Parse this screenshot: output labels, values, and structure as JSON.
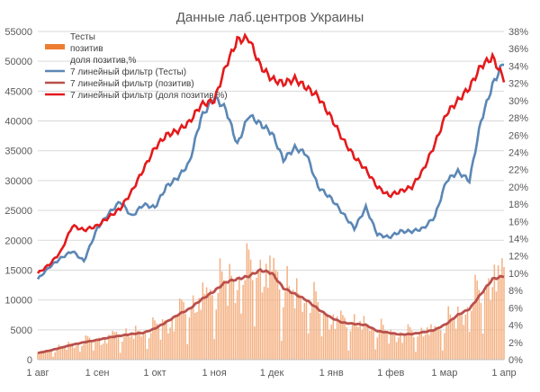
{
  "chart_data": {
    "type": "bar+line",
    "title": "Данные лаб.центров Украины",
    "x_tick_labels": [
      "1 авг",
      "1 сен",
      "1 окт",
      "1 ноя",
      "1 дек",
      "1 янв",
      "1 фев",
      "1 мар",
      "1 апр"
    ],
    "ylim_left": [
      0,
      55000
    ],
    "y_left_ticks": [
      0,
      5000,
      10000,
      15000,
      20000,
      25000,
      30000,
      35000,
      40000,
      45000,
      50000,
      55000
    ],
    "ylim_right": [
      0,
      38
    ],
    "y_right_ticks": [
      "0%",
      "2%",
      "4%",
      "6%",
      "8%",
      "10%",
      "12%",
      "14%",
      "16%",
      "18%",
      "20%",
      "22%",
      "24%",
      "26%",
      "28%",
      "30%",
      "32%",
      "34%",
      "36%",
      "38%"
    ],
    "grid": true,
    "legend_position": "top-left",
    "colors": {
      "tests": "#ffffff",
      "positive_bars": "#f4b183",
      "positive_legend": "#ed7d31",
      "share": "#ffffff",
      "ma_tests": "#5b87b5",
      "ma_positive": "#b9504c",
      "ma_share": "#e41a1c"
    },
    "legend": [
      {
        "label": "Тесты",
        "kind": "bar",
        "color": "#ffffff"
      },
      {
        "label": "позитив",
        "kind": "bar",
        "color": "#ed7d31"
      },
      {
        "label": "доля позитив,%",
        "kind": "line",
        "color": "#ffffff"
      },
      {
        "label": "7 линейный фильтр (Тесты)",
        "kind": "line",
        "color": "#5b87b5"
      },
      {
        "label": "7 линейный фильтр (позитив)",
        "kind": "line",
        "color": "#b9504c"
      },
      {
        "label": "7 линейный фильтр (доля позитив,%)",
        "kind": "line",
        "color": "#e41a1c"
      }
    ],
    "x_points": [
      0,
      6,
      12,
      18,
      24,
      31,
      37,
      43,
      49,
      55,
      61,
      67,
      73,
      79,
      85,
      92,
      98,
      104,
      110,
      116,
      122,
      128,
      134,
      140,
      146,
      153,
      159,
      165,
      171,
      177,
      183,
      189,
      195,
      201,
      207,
      213,
      219,
      225,
      231,
      237,
      243
    ],
    "ma_tests": [
      13500,
      15500,
      17000,
      18200,
      16500,
      22000,
      24500,
      26500,
      24000,
      26000,
      25500,
      29000,
      30500,
      33000,
      40500,
      44000,
      42000,
      36000,
      41000,
      39500,
      38000,
      33500,
      35500,
      34500,
      29000,
      27000,
      24500,
      22000,
      25500,
      21000,
      20500,
      21500,
      21500,
      22000,
      24000,
      30000,
      31500,
      30000,
      40000,
      46000,
      50000
    ],
    "ma_positive": [
      1100,
      1500,
      2000,
      2500,
      2900,
      3300,
      3700,
      4000,
      4300,
      4500,
      5200,
      6300,
      7500,
      8500,
      10000,
      11500,
      13000,
      13500,
      14000,
      15000,
      14500,
      12000,
      11000,
      10000,
      8500,
      7000,
      6200,
      6000,
      5800,
      4800,
      4500,
      4200,
      4300,
      4600,
      5000,
      6000,
      7500,
      8500,
      11000,
      13500,
      14000
    ],
    "ma_share_pct": [
      10.0,
      11.0,
      12.5,
      15.5,
      15.0,
      15.5,
      16.5,
      17.5,
      19.5,
      22.0,
      24.5,
      26.0,
      26.5,
      27.5,
      29.5,
      30.0,
      34.0,
      37.0,
      37.2,
      34.0,
      32.5,
      32.0,
      32.5,
      31.5,
      30.5,
      28.0,
      25.5,
      23.5,
      22.0,
      20.0,
      19.0,
      19.5,
      20.0,
      22.0,
      25.0,
      28.5,
      30.0,
      31.5,
      34.0,
      35.0,
      32.5
    ]
  }
}
